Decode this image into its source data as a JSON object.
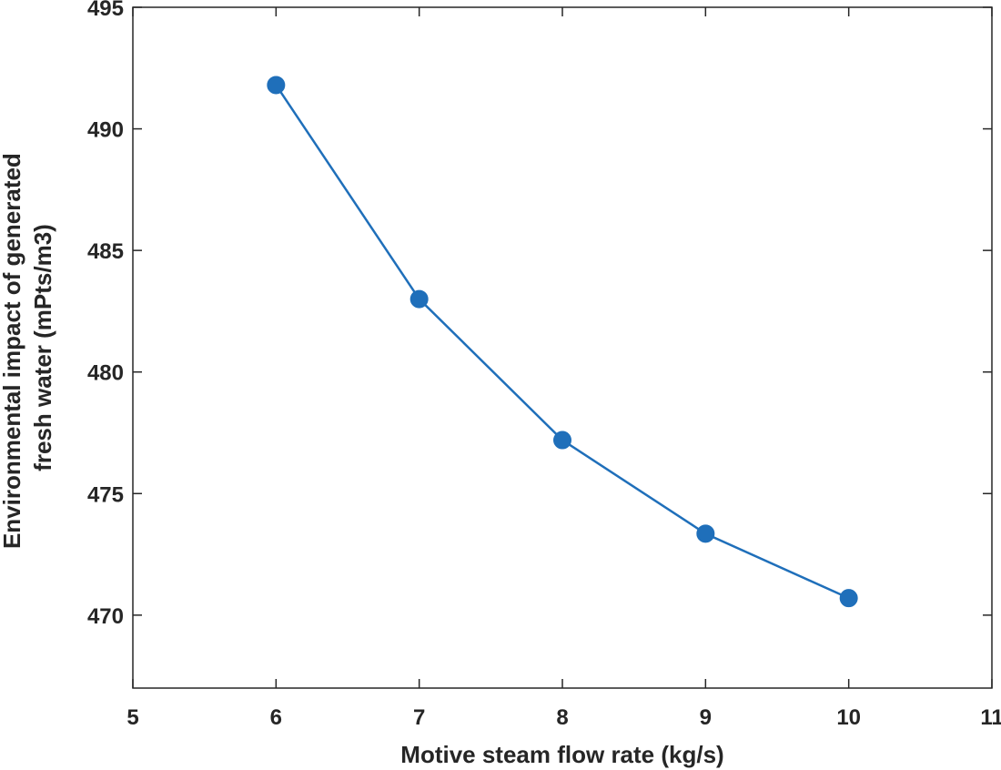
{
  "chart_data": {
    "type": "line",
    "title": "",
    "xlabel": "Motive steam flow rate (kg/s)",
    "ylabel_lines": [
      "Environmental impact of generated",
      "fresh water (mPts/m3)"
    ],
    "xlim": [
      5,
      11
    ],
    "ylim": [
      467,
      495
    ],
    "xticks": [
      5,
      6,
      7,
      8,
      9,
      10,
      11
    ],
    "yticks": [
      470,
      475,
      480,
      485,
      490,
      495
    ],
    "grid": false,
    "series": [
      {
        "color": "#1f6fba",
        "marker": "circle",
        "x": [
          6,
          7,
          8,
          9,
          10
        ],
        "y": [
          491.8,
          483.0,
          477.2,
          473.35,
          470.7
        ]
      }
    ]
  }
}
